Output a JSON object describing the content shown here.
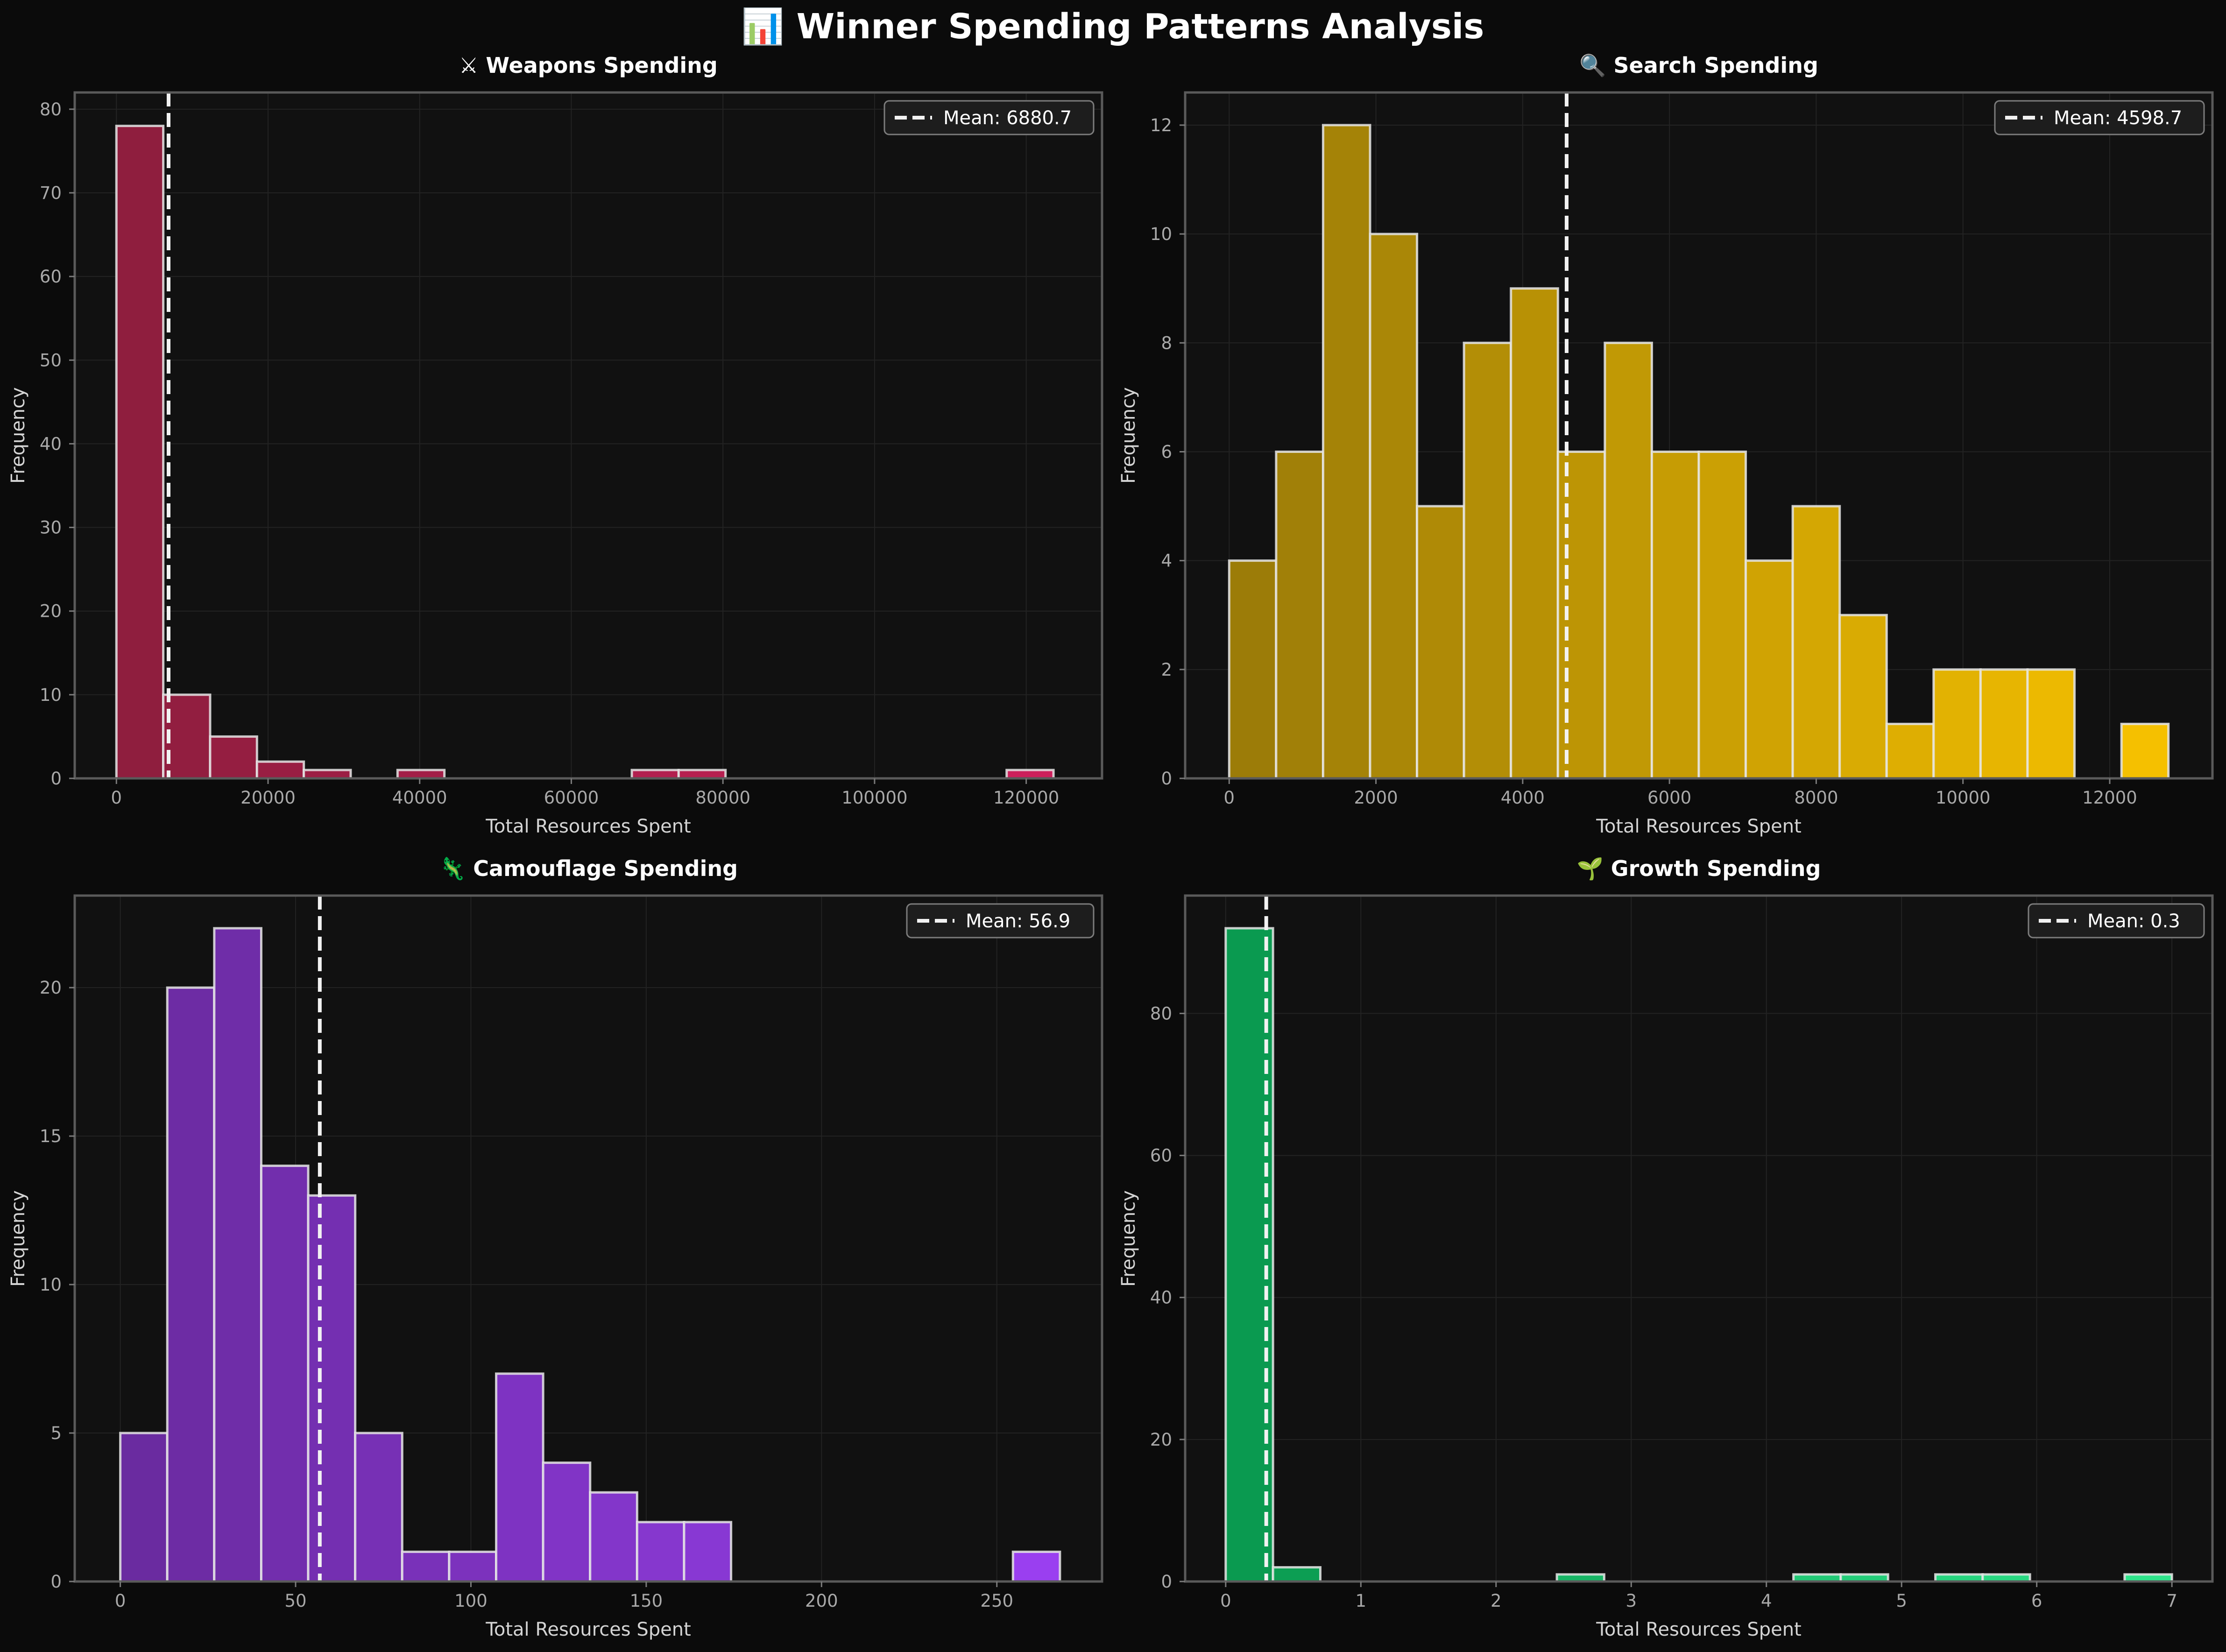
{
  "figure": {
    "title": "📊 Winner Spending Patterns Analysis",
    "background": "#0b0b0b",
    "panel_background": "#111111"
  },
  "chart_data": [
    {
      "type": "bar",
      "title": "⚔ Weapons Spending",
      "xlabel": "Total Resources Spent",
      "ylabel": "Frequency",
      "xlim": [
        -5500,
        130000
      ],
      "ylim": [
        0,
        82
      ],
      "xticks": [
        0,
        20000,
        40000,
        60000,
        80000,
        100000,
        120000
      ],
      "yticks": [
        0,
        10,
        20,
        30,
        40,
        50,
        60,
        70,
        80
      ],
      "bin_start": 0,
      "bin_width": 6180,
      "values": [
        78,
        10,
        5,
        2,
        1,
        0,
        1,
        0,
        0,
        0,
        0,
        1,
        1,
        0,
        0,
        0,
        0,
        0,
        0,
        1
      ],
      "mean": 6880.7,
      "mean_label": "Mean: 6880.7",
      "color_start": "#8f1e3e",
      "color_end": "#cc1f5b"
    },
    {
      "type": "bar",
      "title": "🔍 Search Spending",
      "xlabel": "Total Resources Spent",
      "ylabel": "Frequency",
      "xlim": [
        -600,
        13400
      ],
      "ylim": [
        0,
        12.6
      ],
      "xticks": [
        0,
        2000,
        4000,
        6000,
        8000,
        10000,
        12000
      ],
      "yticks": [
        0,
        2,
        4,
        6,
        8,
        10,
        12
      ],
      "bin_start": 0,
      "bin_width": 640,
      "values": [
        4,
        6,
        12,
        10,
        5,
        8,
        9,
        6,
        8,
        6,
        6,
        4,
        5,
        3,
        1,
        2,
        2,
        2,
        0,
        1
      ],
      "mean": 4598.7,
      "mean_label": "Mean: 4598.7",
      "color_start": "#9c7c08",
      "color_end": "#f5c000"
    },
    {
      "type": "bar",
      "title": "🦎 Camouflage Spending",
      "xlabel": "Total Resources Spent",
      "ylabel": "Frequency",
      "xlim": [
        -13,
        280
      ],
      "ylim": [
        0,
        23.1
      ],
      "xticks": [
        0,
        50,
        100,
        150,
        200,
        250
      ],
      "yticks": [
        0,
        5,
        10,
        15,
        20
      ],
      "bin_start": 0,
      "bin_width": 13.4,
      "values": [
        5,
        20,
        22,
        14,
        13,
        5,
        1,
        1,
        7,
        4,
        3,
        2,
        2,
        0,
        0,
        0,
        0,
        0,
        0,
        1
      ],
      "mean": 56.9,
      "mean_label": "Mean: 56.9",
      "color_start": "#6a2ba0",
      "color_end": "#9a3ff0"
    },
    {
      "type": "bar",
      "title": "🌱 Growth Spending",
      "xlabel": "Total Resources Spent",
      "ylabel": "Frequency",
      "xlim": [
        -0.3,
        7.3
      ],
      "ylim": [
        0,
        96.6
      ],
      "xticks": [
        0,
        1,
        2,
        3,
        4,
        5,
        6,
        7
      ],
      "yticks": [
        0,
        20,
        40,
        60,
        80
      ],
      "bin_start": 0,
      "bin_width": 0.35,
      "values": [
        92,
        2,
        0,
        0,
        0,
        0,
        0,
        1,
        0,
        0,
        0,
        0,
        1,
        1,
        0,
        1,
        1,
        0,
        0,
        1
      ],
      "mean": 0.3,
      "mean_label": "Mean: 0.3",
      "color_start": "#0a9a50",
      "color_end": "#2ee58a"
    }
  ]
}
